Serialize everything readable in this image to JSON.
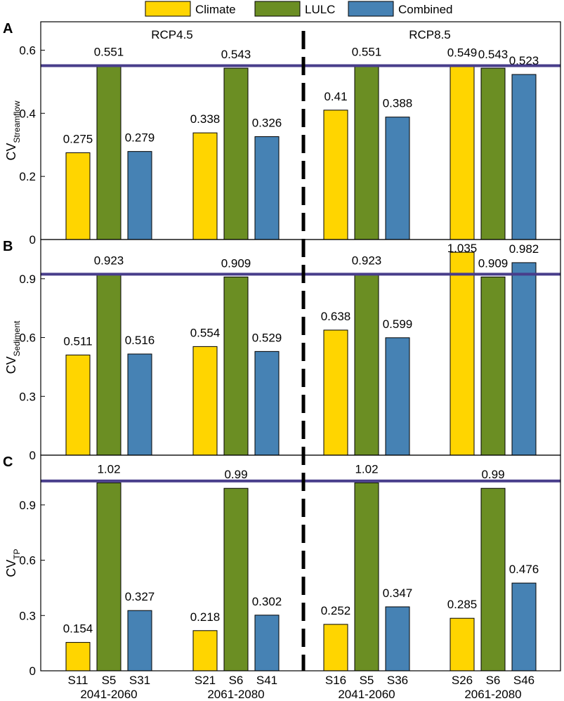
{
  "colors": {
    "Climate": "#FFD500",
    "LULC": "#6B8E23",
    "Combined": "#4682B4",
    "reference_line": "#483D8B"
  },
  "legend": [
    "Climate",
    "LULC",
    "Combined"
  ],
  "scenario_headers": [
    "RCP4.5",
    "RCP8.5"
  ],
  "period_labels": [
    "2041-2060",
    "2061-2080",
    "2041-2060",
    "2061-2080"
  ],
  "scenario_labels": [
    [
      "S11",
      "S5",
      "S31"
    ],
    [
      "S21",
      "S6",
      "S41"
    ],
    [
      "S16",
      "S5",
      "S36"
    ],
    [
      "S26",
      "S6",
      "S46"
    ]
  ],
  "chart_data": [
    {
      "type": "bar",
      "panel": "A",
      "ylabel": "CV",
      "ylabel_sub": "Streamflow",
      "ylim": [
        0,
        0.69
      ],
      "yticks": [
        0,
        0.2,
        0.4,
        0.6
      ],
      "ytick_labels": [
        "0",
        "0.2",
        "0.4",
        "0.6"
      ],
      "reference_line": 0.551,
      "series": [
        {
          "name": "Climate",
          "values": [
            0.275,
            0.338,
            0.41,
            0.549
          ],
          "labels": [
            "0.275",
            "0.338",
            "0.41",
            "0.549"
          ]
        },
        {
          "name": "LULC",
          "values": [
            0.551,
            0.543,
            0.551,
            0.543
          ],
          "labels": [
            "0.551",
            "0.543",
            "0.551",
            "0.543"
          ]
        },
        {
          "name": "Combined",
          "values": [
            0.279,
            0.326,
            0.388,
            0.523
          ],
          "labels": [
            "0.279",
            "0.326",
            "0.388",
            "0.523"
          ]
        }
      ]
    },
    {
      "type": "bar",
      "panel": "B",
      "ylabel": "CV",
      "ylabel_sub": "Sediment",
      "ylim": [
        0,
        1.1
      ],
      "yticks": [
        0,
        0.3,
        0.6,
        0.9
      ],
      "ytick_labels": [
        "0",
        "0.3",
        "0.6",
        "0.9"
      ],
      "reference_line": 0.923,
      "series": [
        {
          "name": "Climate",
          "values": [
            0.511,
            0.554,
            0.638,
            1.035
          ],
          "labels": [
            "0.511",
            "0.554",
            "0.638",
            "1.035"
          ]
        },
        {
          "name": "LULC",
          "values": [
            0.923,
            0.909,
            0.923,
            0.909
          ],
          "labels": [
            "0.923",
            "0.909",
            "0.923",
            "0.909"
          ]
        },
        {
          "name": "Combined",
          "values": [
            0.516,
            0.529,
            0.599,
            0.982
          ],
          "labels": [
            "0.516",
            "0.529",
            "0.599",
            "0.982"
          ]
        }
      ]
    },
    {
      "type": "bar",
      "panel": "C",
      "ylabel": "CV",
      "ylabel_sub": "TP",
      "ylim": [
        0,
        1.17
      ],
      "yticks": [
        0,
        0.3,
        0.6,
        0.9
      ],
      "ytick_labels": [
        "0",
        "0.3",
        "0.6",
        "0.9"
      ],
      "reference_line": 1.03,
      "series": [
        {
          "name": "Climate",
          "values": [
            0.154,
            0.218,
            0.252,
            0.285
          ],
          "labels": [
            "0.154",
            "0.218",
            "0.252",
            "0.285"
          ]
        },
        {
          "name": "LULC",
          "values": [
            1.02,
            0.99,
            1.02,
            0.99
          ],
          "labels": [
            "1.02",
            "0.99",
            "1.02",
            "0.99"
          ]
        },
        {
          "name": "Combined",
          "values": [
            0.327,
            0.302,
            0.347,
            0.476
          ],
          "labels": [
            "0.327",
            "0.302",
            "0.347",
            "0.476"
          ]
        }
      ]
    }
  ]
}
